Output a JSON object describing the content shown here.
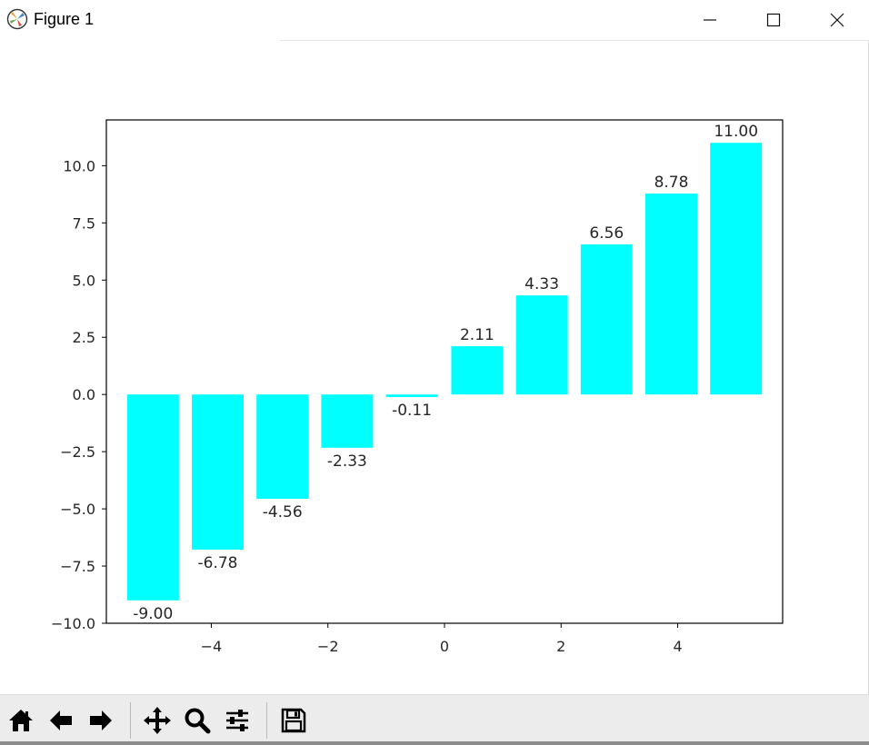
{
  "window": {
    "title": "Figure 1",
    "controls": [
      "minimize-icon",
      "maximize-icon",
      "close-icon"
    ]
  },
  "toolbar": {
    "icons": [
      "home-icon",
      "back-arrow-icon",
      "forward-arrow-icon",
      "pan-icon",
      "zoom-icon",
      "configure-subplots-icon",
      "save-icon"
    ]
  },
  "chart_data": {
    "type": "bar",
    "x": [
      -5,
      -3.89,
      -2.78,
      -1.67,
      -0.56,
      0.56,
      1.67,
      2.78,
      3.89,
      5
    ],
    "values": [
      -9.0,
      -6.78,
      -4.56,
      -2.33,
      -0.11,
      2.11,
      4.33,
      6.56,
      8.78,
      11.0
    ],
    "labels": [
      "-9.00",
      "-6.78",
      "-4.56",
      "-2.33",
      "-0.11",
      "2.11",
      "4.33",
      "6.56",
      "8.78",
      "11.00"
    ],
    "bar_color": "#00ffff",
    "xlim": [
      -5.8,
      5.8
    ],
    "ylim": [
      -10,
      12
    ],
    "xticks": [
      -4,
      -2,
      0,
      2,
      4
    ],
    "xtick_labels": [
      "−4",
      "−2",
      "0",
      "2",
      "4"
    ],
    "yticks": [
      -10,
      -7.5,
      -5,
      -2.5,
      0,
      2.5,
      5,
      7.5,
      10
    ],
    "ytick_labels": [
      "−10.0",
      "−7.5",
      "−5.0",
      "−2.5",
      "0.0",
      "2.5",
      "5.0",
      "7.5",
      "10.0"
    ],
    "grid": false,
    "title": "",
    "xlabel": "",
    "ylabel": ""
  }
}
